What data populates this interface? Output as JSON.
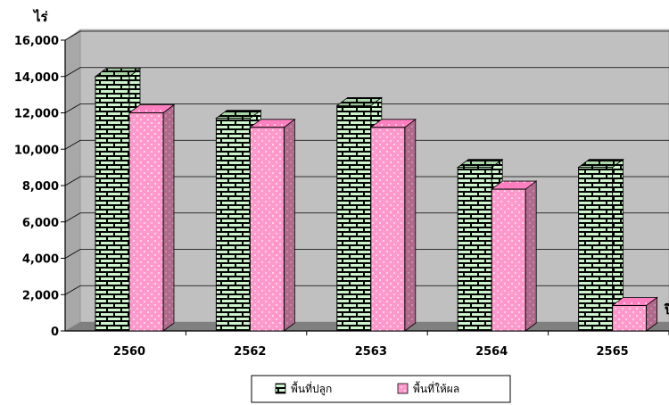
{
  "chart_data": {
    "type": "bar",
    "y_unit_label": "ไร่",
    "x_unit_label": "ปี",
    "categories": [
      "2560",
      "2562",
      "2563",
      "2564",
      "2565"
    ],
    "series": [
      {
        "name": "พื้นที่ปลูก",
        "values": [
          14000,
          11700,
          12400,
          9000,
          9000
        ],
        "color": "#000000",
        "pattern": "brick-green"
      },
      {
        "name": "พื้นที่ให้ผล",
        "values": [
          12000,
          11200,
          11200,
          7800,
          1400
        ],
        "color": "#ff99cc",
        "pattern": "dots-pink"
      }
    ],
    "ylim": [
      0,
      16000
    ],
    "yticks": [
      "0",
      "2,000",
      "4,000",
      "6,000",
      "8,000",
      "10,000",
      "12,000",
      "14,000",
      "16,000"
    ],
    "grid": true,
    "legend_position": "bottom",
    "wall_color": "#c0c0c0"
  }
}
